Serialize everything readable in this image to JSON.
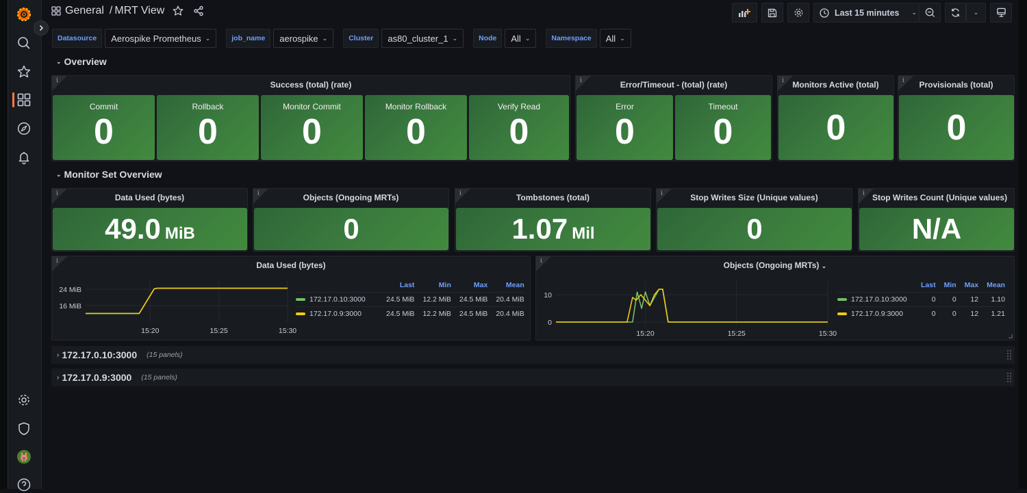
{
  "header": {
    "breadcrumb_folder": "General",
    "breadcrumb_separator": "/",
    "dashboard_title": "MRT View",
    "time_range": "Last 15 minutes"
  },
  "variables": [
    {
      "label": "Datasource",
      "value": "Aerospike Prometheus"
    },
    {
      "label": "job_name",
      "value": "aerospike"
    },
    {
      "label": "Cluster",
      "value": "as80_cluster_1"
    },
    {
      "label": "Node",
      "value": "All"
    },
    {
      "label": "Namespace",
      "value": "All"
    }
  ],
  "overview": {
    "title": "Overview",
    "success_panel": {
      "title": "Success (total) (rate)",
      "stats": [
        {
          "label": "Commit",
          "value": "0"
        },
        {
          "label": "Rollback",
          "value": "0"
        },
        {
          "label": "Monitor Commit",
          "value": "0"
        },
        {
          "label": "Monitor Rollback",
          "value": "0"
        },
        {
          "label": "Verify Read",
          "value": "0"
        }
      ]
    },
    "error_panel": {
      "title": "Error/Timeout - (total) (rate)",
      "stats": [
        {
          "label": "Error",
          "value": "0"
        },
        {
          "label": "Timeout",
          "value": "0"
        }
      ]
    },
    "monitors_panel": {
      "title": "Monitors Active (total)",
      "value": "0"
    },
    "provisionals_panel": {
      "title": "Provisionals (total)",
      "value": "0"
    }
  },
  "monitor_set": {
    "title": "Monitor Set Overview",
    "stats": [
      {
        "title": "Data Used (bytes)",
        "value": "49.0",
        "unit": "MiB"
      },
      {
        "title": "Objects (Ongoing MRTs)",
        "value": "0",
        "unit": ""
      },
      {
        "title": "Tombstones (total)",
        "value": "1.07",
        "unit": "Mil"
      },
      {
        "title": "Stop Writes Size (Unique values)",
        "value": "0",
        "unit": ""
      },
      {
        "title": "Stop Writes Count (Unique values)",
        "value": "N/A",
        "unit": ""
      }
    ]
  },
  "chart_data": [
    {
      "type": "line",
      "title": "Data Used (bytes)",
      "ylabel": "MiB",
      "yticks": [
        "24 MiB",
        "16 MiB"
      ],
      "ytick_values": [
        24,
        16
      ],
      "xticks": [
        "15:20",
        "15:25",
        "15:30"
      ],
      "xtick_values": [
        20,
        25,
        30
      ],
      "xlim": [
        15.3,
        30
      ],
      "ylim": [
        8,
        28
      ],
      "legend_headers": [
        "Last",
        "Min",
        "Max",
        "Mean"
      ],
      "series": [
        {
          "name": "172.17.0.10:3000",
          "color": "#73bf69",
          "stats": [
            "24.5 MiB",
            "12.2 MiB",
            "24.5 MiB",
            "20.4 MiB"
          ],
          "x": [
            15.3,
            19.2,
            20.3,
            20.5,
            30
          ],
          "y": [
            12.2,
            12.2,
            24.2,
            24.5,
            24.5
          ]
        },
        {
          "name": "172.17.0.9:3000",
          "color": "#f2cc0c",
          "stats": [
            "24.5 MiB",
            "12.2 MiB",
            "24.5 MiB",
            "20.4 MiB"
          ],
          "x": [
            15.3,
            19.2,
            20.3,
            20.5,
            30
          ],
          "y": [
            12.2,
            12.2,
            24.2,
            24.5,
            24.5
          ]
        }
      ]
    },
    {
      "type": "line",
      "title": "Objects (Ongoing MRTs)",
      "yticks": [
        "10",
        "0"
      ],
      "ytick_values": [
        10,
        0
      ],
      "xticks": [
        "15:20",
        "15:25",
        "15:30"
      ],
      "xtick_values": [
        20,
        25,
        30
      ],
      "xlim": [
        15.1,
        30
      ],
      "ylim": [
        -1,
        15
      ],
      "legend_headers": [
        "Last",
        "Min",
        "Max",
        "Mean"
      ],
      "series": [
        {
          "name": "172.17.0.10:3000",
          "color": "#73bf69",
          "stats": [
            "0",
            "0",
            "12",
            "1.10"
          ],
          "x": [
            15.1,
            19.1,
            19.3,
            19.55,
            19.8,
            20.0,
            20.25,
            20.5,
            20.75,
            20.95,
            21.25,
            30
          ],
          "y": [
            0,
            0,
            0,
            11,
            5,
            11,
            6,
            9,
            12,
            12,
            0,
            0
          ]
        },
        {
          "name": "172.17.0.9:3000",
          "color": "#f2cc0c",
          "stats": [
            "0",
            "0",
            "12",
            "1.21"
          ],
          "x": [
            15.1,
            19.0,
            19.3,
            19.5,
            19.75,
            20.25,
            20.5,
            20.75,
            20.95,
            21.25,
            30
          ],
          "y": [
            0,
            0,
            9,
            8,
            10,
            6,
            10,
            12,
            12,
            0,
            0
          ]
        }
      ]
    }
  ],
  "collapsed_rows": [
    {
      "title": "172.17.0.10:3000",
      "count": "(15 panels)"
    },
    {
      "title": "172.17.0.9:3000",
      "count": "(15 panels)"
    }
  ]
}
